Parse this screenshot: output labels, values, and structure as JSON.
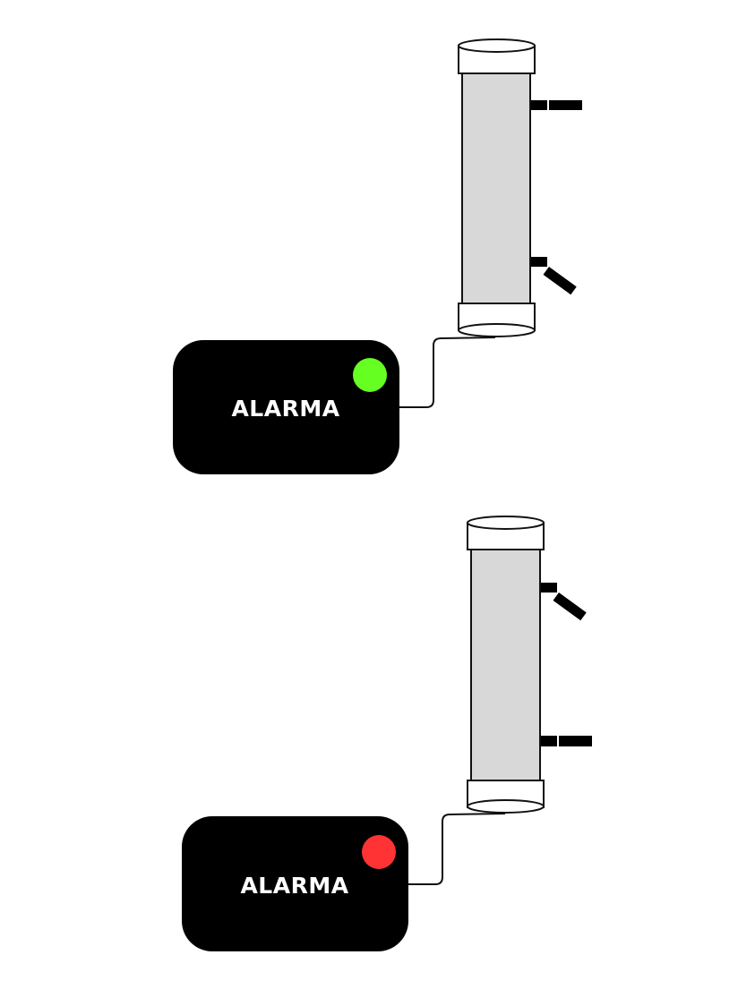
{
  "colors": {
    "background": "#ffffff",
    "tube_fill": "#d8d8d8",
    "outline": "#111111",
    "alarm_box": "#000000",
    "alarm_text": "#ffffff"
  },
  "units": [
    {
      "alarm_label": "ALARMA",
      "status_light_color": "#66ff22",
      "upper_switch": "straight",
      "lower_switch": "tilted"
    },
    {
      "alarm_label": "ALARMA",
      "status_light_color": "#ff3333",
      "upper_switch": "tilted",
      "lower_switch": "straight"
    }
  ]
}
